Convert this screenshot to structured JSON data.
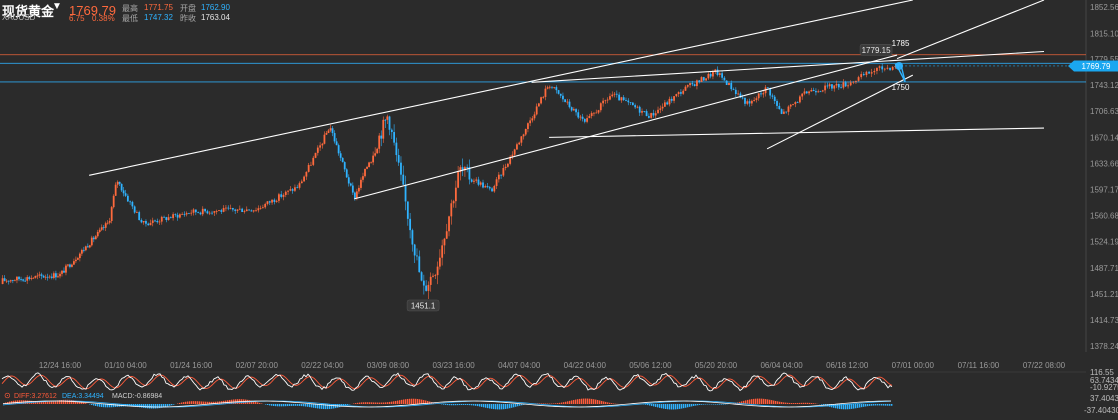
{
  "header": {
    "symbol_name": "现货黄金",
    "symbol_code": "XAUUSD",
    "caret_icon": "dropdown-caret-icon",
    "last_price": "1769.79",
    "change": "6.75",
    "change_pct": "0.38%",
    "quotes": [
      {
        "label": "最高",
        "value": "1771.75",
        "tone": "up"
      },
      {
        "label": "开盘",
        "value": "1762.90",
        "tone": "dn"
      },
      {
        "label": "最低",
        "value": "1747.32",
        "tone": "dn"
      },
      {
        "label": "昨收",
        "value": "1763.04",
        "tone": "ne"
      }
    ]
  },
  "colors": {
    "background": "#2b2b2b",
    "up_candle": "#ff6a3d",
    "down_candle": "#2fb3ff",
    "trendline": "#ffffff",
    "support_line": "#2fb3ff",
    "resistance_line": "#ff6a3d",
    "price_tag": "#1aa7f0"
  },
  "chart_data": {
    "type": "candlestick",
    "y_axis": {
      "ticks": [
        "1852.56",
        "1815.10",
        "1779.55",
        "1743.12",
        "1706.63",
        "1670.14",
        "1633.66",
        "1597.17",
        "1560.68",
        "1524.19",
        "1487.71",
        "1451.21",
        "1414.73",
        "1378.24"
      ],
      "range": [
        1370,
        1862
      ]
    },
    "x_axis": {
      "ticks": [
        "12/24 16:00",
        "01/10 04:00",
        "01/24 16:00",
        "02/07 20:00",
        "02/22 04:00",
        "03/09 08:00",
        "03/23 16:00",
        "04/07 04:00",
        "04/22 04:00",
        "05/06 12:00",
        "05/20 20:00",
        "06/04 04:00",
        "06/18 12:00",
        "07/01 00:00",
        "07/11 16:00",
        "07/22 08:00"
      ]
    },
    "price_path": [
      [
        "12/24 16:00",
        1478
      ],
      [
        "01/06 00:00",
        1552
      ],
      [
        "01/08 00:00",
        1611
      ],
      [
        "01/14 00:00",
        1549
      ],
      [
        "01/24 16:00",
        1566
      ],
      [
        "02/07 20:00",
        1570
      ],
      [
        "02/17 00:00",
        1602
      ],
      [
        "02/24 00:00",
        1686
      ],
      [
        "03/01 00:00",
        1585
      ],
      [
        "03/09 08:00",
        1702
      ],
      [
        "03/17 00:00",
        1455
      ],
      [
        "03/20 00:00",
        1491
      ],
      [
        "03/25 00:00",
        1625
      ],
      [
        "04/01 00:00",
        1595
      ],
      [
        "04/07 04:00",
        1665
      ],
      [
        "04/14 00:00",
        1745
      ],
      [
        "04/22 04:00",
        1690
      ],
      [
        "04/28 00:00",
        1730
      ],
      [
        "05/06 12:00",
        1700
      ],
      [
        "05/14 00:00",
        1738
      ],
      [
        "05/20 20:00",
        1762
      ],
      [
        "05/28 00:00",
        1715
      ],
      [
        "06/01 00:00",
        1740
      ],
      [
        "06/04 04:00",
        1702
      ],
      [
        "06/10 00:00",
        1735
      ],
      [
        "06/18 12:00",
        1745
      ],
      [
        "06/24 00:00",
        1765
      ],
      [
        "06/28 00:00",
        1769.79
      ]
    ],
    "last_price": 1769.79,
    "horizontal_lines": [
      {
        "price": 1785.5,
        "color": "resistance"
      },
      {
        "price": 1773.5,
        "color": "support"
      },
      {
        "price": 1747.5,
        "color": "support"
      }
    ],
    "annotations": [
      {
        "text": "1779.15",
        "x": "06/24 00:00",
        "y": 1779.15,
        "type": "high-label"
      },
      {
        "text": "1451.1",
        "x": "03/17 00:00",
        "y": 1451.1,
        "type": "low-label"
      },
      {
        "text": "1785",
        "x": "06/28 16:00",
        "y": 1785,
        "type": "target"
      },
      {
        "text": "1750",
        "x": "06/28 16:00",
        "y": 1750,
        "type": "target"
      }
    ],
    "trend_lines": [
      [
        [
          "01/01 00:00",
          1617
        ],
        [
          "07/01 00:00",
          1862
        ]
      ],
      [
        [
          "03/01 00:00",
          1584
        ],
        [
          "06/28 00:00",
          1785
        ]
      ],
      [
        [
          "04/10 00:00",
          1747
        ],
        [
          "07/22 08:00",
          1790
        ]
      ],
      [
        [
          "04/14 00:00",
          1670
        ],
        [
          "07/22 08:00",
          1683
        ]
      ],
      [
        [
          "06/01 00:00",
          1654
        ],
        [
          "07/01 00:00",
          1757
        ]
      ],
      [
        [
          "06/28 00:00",
          1780
        ],
        [
          "07/22 08:00",
          1862
        ]
      ]
    ],
    "indicators": {
      "upper": {
        "name": "",
        "values": [
          "116.55",
          "63.7434",
          "-10.9275"
        ]
      },
      "macd": {
        "diff_label": "DIFF:3.27612",
        "dea_label": "DEA:3.34494",
        "macd_label": "MACD:-0.86984",
        "axis_values": [
          "37.40430",
          "-37.40430"
        ]
      }
    }
  }
}
